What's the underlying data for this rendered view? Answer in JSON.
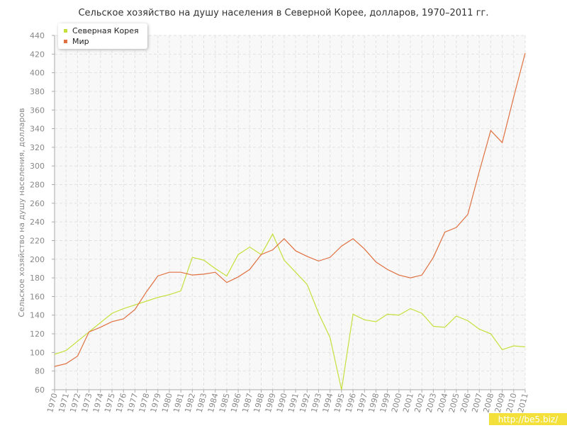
{
  "chart_data": {
    "type": "line",
    "title": "Сельское хозяйство на душу населения в Северной Корее, долларов, 1970–2011 гг.",
    "y_label": "Сельское хозяйство на душу населения, долларов",
    "categories": [
      "1970",
      "1971",
      "1972",
      "1973",
      "1974",
      "1975",
      "1976",
      "1977",
      "1978",
      "1979",
      "1980",
      "1981",
      "1982",
      "1983",
      "1984",
      "1985",
      "1986",
      "1987",
      "1988",
      "1989",
      "1990",
      "1991",
      "1992",
      "1993",
      "1994",
      "1995",
      "1996",
      "1997",
      "1998",
      "1999",
      "2000",
      "2001",
      "2002",
      "2003",
      "2004",
      "2005",
      "2006",
      "2007",
      "2008",
      "2009",
      "2010",
      "2011"
    ],
    "series": [
      {
        "name": "Северная Корея",
        "color": "#c5e03c",
        "values": [
          98,
          102,
          112,
          122,
          132,
          142,
          147,
          151,
          155,
          159,
          162,
          166,
          202,
          199,
          190,
          182,
          205,
          213,
          205,
          227,
          199,
          186,
          173,
          142,
          116,
          60,
          141,
          135,
          133,
          141,
          140,
          147,
          142,
          128,
          127,
          139,
          134,
          125,
          120,
          103,
          107,
          106
        ]
      },
      {
        "name": "Мир",
        "color": "#e07040",
        "values": [
          85,
          88,
          96,
          122,
          127,
          133,
          136,
          146,
          165,
          182,
          186,
          186,
          183,
          184,
          186,
          175,
          181,
          189,
          205,
          210,
          222,
          209,
          203,
          198,
          202,
          214,
          222,
          211,
          197,
          189,
          183,
          180,
          183,
          202,
          229,
          234,
          248,
          294,
          338,
          325,
          374,
          421
        ]
      }
    ],
    "ylim": [
      60,
      440
    ],
    "yticks": [
      60,
      80,
      100,
      120,
      140,
      160,
      180,
      200,
      220,
      240,
      260,
      280,
      300,
      320,
      340,
      360,
      380,
      400,
      420,
      440
    ],
    "grid": true,
    "legend": "top-left"
  },
  "watermark": "http://be5.biz/"
}
